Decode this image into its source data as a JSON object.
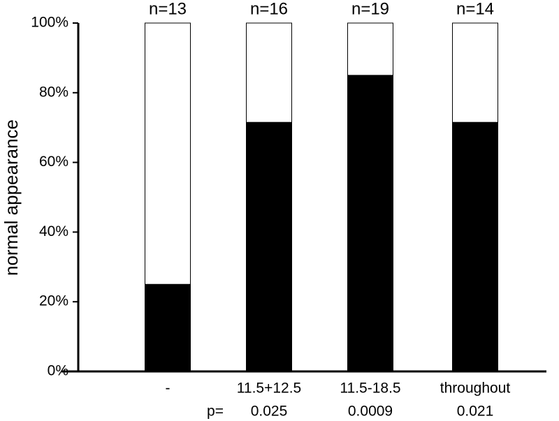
{
  "chart_data": {
    "type": "stacked_bar",
    "ylabel": "normal appearance",
    "categories": [
      "-",
      "11.5+12.5",
      "11.5-18.5",
      "throughout"
    ],
    "n_labels": [
      "n=13",
      "n=16",
      "n=19",
      "n=14"
    ],
    "p_prefix": "p=",
    "p_values": [
      "0.025",
      "0.0009",
      "0.021"
    ],
    "series": [
      {
        "color": "#000000",
        "values": [
          25,
          71.5,
          85,
          71.5
        ]
      },
      {
        "color": "#ffffff",
        "values": [
          75,
          28.5,
          15,
          28.5
        ]
      }
    ],
    "ylim": [
      0,
      100
    ],
    "yticks": [
      {
        "value": 0,
        "label": "0%"
      },
      {
        "value": 20,
        "label": "20%"
      },
      {
        "value": 40,
        "label": "40%"
      },
      {
        "value": 60,
        "label": "60%"
      },
      {
        "value": 80,
        "label": "80%"
      },
      {
        "value": 100,
        "label": "100%"
      }
    ]
  }
}
